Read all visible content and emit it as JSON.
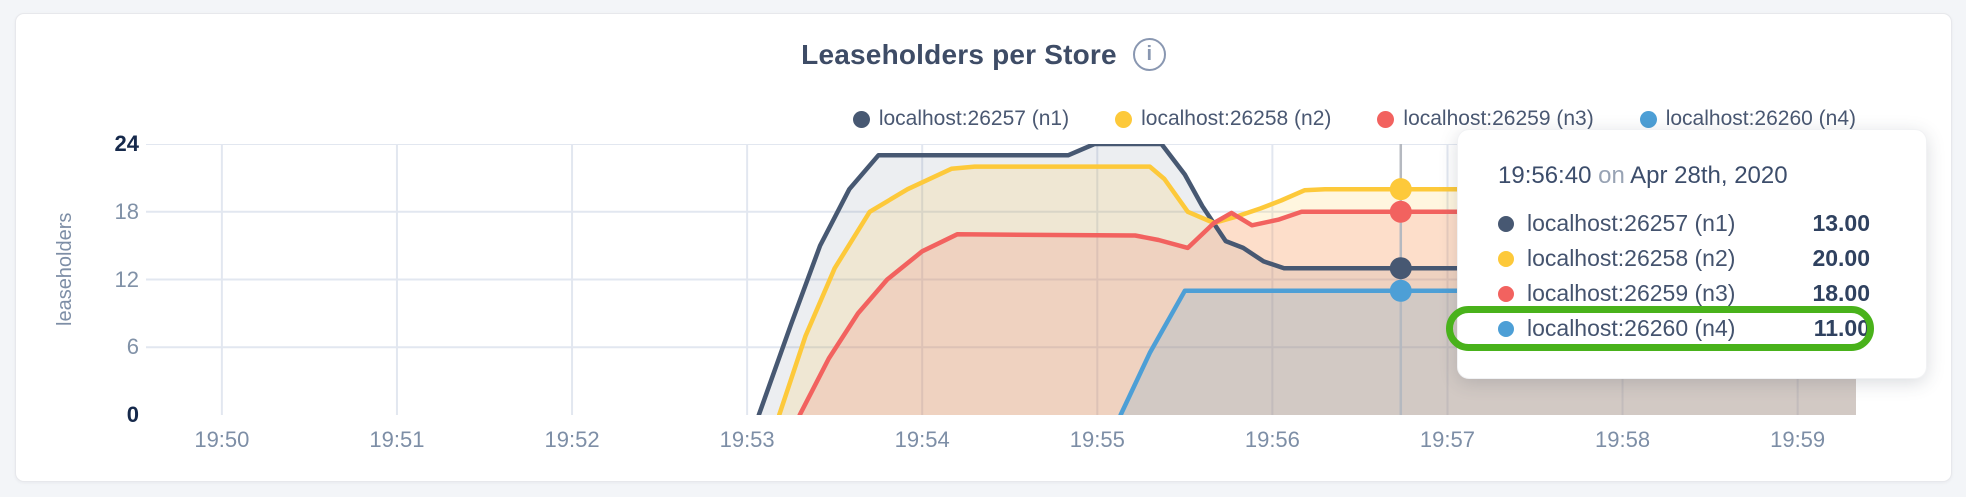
{
  "colors": {
    "page_bg": "#f3f5f8",
    "card_bg": "#ffffff",
    "grid": "#e2e7f0",
    "crosshair": "#b5b9c0",
    "axis_text": "#7d8ea6",
    "axis_text_strong": "#16294b",
    "legend_text": "#4a5872",
    "title_text": "#3e4c66",
    "annotation_green": "#49b21b"
  },
  "chart_data": {
    "type": "area",
    "title": "Leaseholders per Store",
    "info_icon": "i",
    "ylabel": "leaseholders",
    "xlabel": "",
    "ylim": [
      0,
      24
    ],
    "y_ticks": [
      0,
      6,
      12,
      18,
      24
    ],
    "y_ticks_emphasized": [
      0,
      24
    ],
    "x_tick_labels": [
      "19:50",
      "19:51",
      "19:52",
      "19:53",
      "19:54",
      "19:55",
      "19:56",
      "19:57",
      "19:58",
      "19:59"
    ],
    "x_tick_seconds": [
      0,
      60,
      120,
      180,
      240,
      300,
      360,
      420,
      480,
      540
    ],
    "x_domain_seconds": [
      -26,
      560
    ],
    "grid": true,
    "legend_position": "top-right",
    "series": [
      {
        "name": "localhost:26257 (n1)",
        "color": "#475872",
        "fill": "rgba(71,88,114,0.10)",
        "points": [
          [
            184,
            0
          ],
          [
            195,
            8
          ],
          [
            205,
            15
          ],
          [
            215,
            20
          ],
          [
            225,
            23
          ],
          [
            290,
            23
          ],
          [
            299,
            24
          ],
          [
            322,
            24
          ],
          [
            330,
            21.3
          ],
          [
            336,
            18.5
          ],
          [
            344,
            15.4
          ],
          [
            350,
            14.8
          ],
          [
            357,
            13.6
          ],
          [
            364,
            13
          ],
          [
            560,
            13
          ]
        ]
      },
      {
        "name": "localhost:26258 (n2)",
        "color": "#fdc93a",
        "fill": "rgba(253,201,58,0.16)",
        "points": [
          [
            191,
            0
          ],
          [
            200,
            7
          ],
          [
            210,
            13
          ],
          [
            222,
            18
          ],
          [
            235,
            20
          ],
          [
            250,
            21.8
          ],
          [
            258,
            22
          ],
          [
            318,
            22
          ],
          [
            323,
            20.9
          ],
          [
            331,
            18.0
          ],
          [
            340,
            17.0
          ],
          [
            348,
            17.6
          ],
          [
            356,
            18.3
          ],
          [
            363,
            19.0
          ],
          [
            371,
            19.9
          ],
          [
            378,
            20
          ],
          [
            560,
            20
          ]
        ]
      },
      {
        "name": "localhost:26259 (n3)",
        "color": "#f2625f",
        "fill": "rgba(242,98,95,0.16)",
        "points": [
          [
            198,
            0
          ],
          [
            208,
            5
          ],
          [
            218,
            9
          ],
          [
            228,
            12
          ],
          [
            240,
            14.5
          ],
          [
            252,
            16
          ],
          [
            313,
            15.9
          ],
          [
            321,
            15.5
          ],
          [
            331,
            14.8
          ],
          [
            340,
            17.0
          ],
          [
            346,
            17.9
          ],
          [
            353,
            16.8
          ],
          [
            362,
            17.3
          ],
          [
            370,
            18
          ],
          [
            560,
            18
          ]
        ]
      },
      {
        "name": "localhost:26260 (n4)",
        "color": "#4d9fd6",
        "fill": "rgba(77,159,214,0.18)",
        "points": [
          [
            308,
            0
          ],
          [
            318,
            5.5
          ],
          [
            330,
            11
          ],
          [
            560,
            11
          ]
        ]
      }
    ],
    "hover": {
      "x_seconds": 404,
      "time_label": "19:56:40",
      "conjunction": "on",
      "date_label": "Apr 28th, 2020",
      "values": [
        13,
        20,
        18,
        11
      ],
      "rows": [
        {
          "name": "localhost:26257 (n1)",
          "value": "13.00",
          "color": "#475872"
        },
        {
          "name": "localhost:26258 (n2)",
          "value": "20.00",
          "color": "#fdc93a"
        },
        {
          "name": "localhost:26259 (n3)",
          "value": "18.00",
          "color": "#f2625f"
        },
        {
          "name": "localhost:26260 (n4)",
          "value": "11.00",
          "color": "#4d9fd6"
        }
      ],
      "highlighted_row": 3
    }
  },
  "annotation": {
    "type": "green-highlight-ring",
    "around": "localhost:26260 (n4) 11.00",
    "color": "#49b21b"
  }
}
